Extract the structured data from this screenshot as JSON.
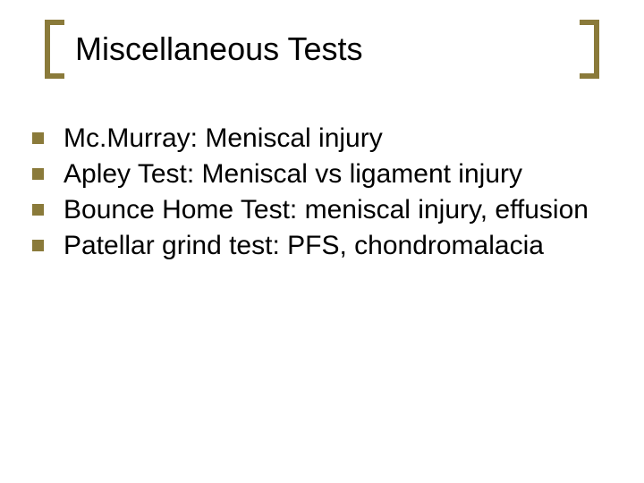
{
  "slide": {
    "background_color": "#ffffff",
    "title": {
      "text": "Miscellaneous Tests",
      "font_size": 36,
      "color": "#000000",
      "bracket_color": "#8a7a3a",
      "bracket_thickness": 6
    },
    "bullets": {
      "marker_color": "#8a7a3a",
      "marker_size": 13,
      "text_color": "#000000",
      "text_font_size": 30,
      "items": [
        {
          "text": "Mc.Murray:  Meniscal injury"
        },
        {
          "text": "Apley Test:  Meniscal vs ligament injury"
        },
        {
          "text": "Bounce Home Test:  meniscal injury, effusion"
        },
        {
          "text": "Patellar grind test:  PFS, chondromalacia"
        }
      ]
    }
  }
}
